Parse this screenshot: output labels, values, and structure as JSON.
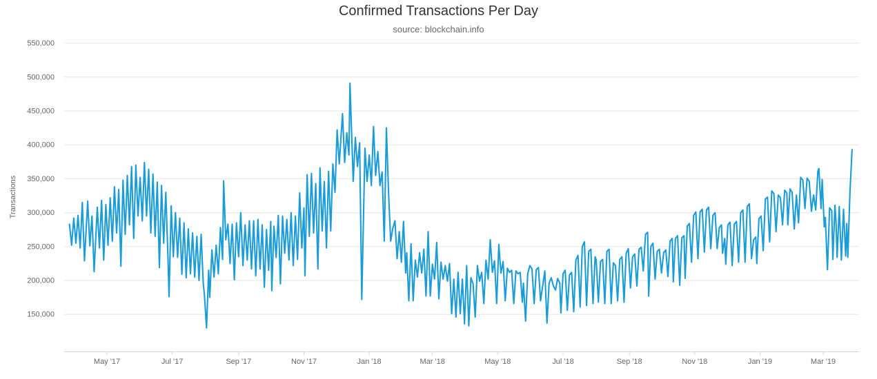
{
  "header": {
    "title": "Confirmed Transactions Per Day",
    "subtitle": "source: blockchain.info"
  },
  "chart_data": {
    "type": "line",
    "title": "Confirmed Transactions Per Day",
    "subtitle": "source: blockchain.info",
    "ylabel": "Transactions",
    "xlabel": "",
    "legend": "none",
    "grid": "horizontal",
    "line_color": "#1a9cd8",
    "grid_color": "#e6e6e6",
    "axis_color": "#ccd6eb",
    "label_color": "#666666",
    "ylim": [
      95000,
      550000
    ],
    "y_ticks": [
      {
        "label": "150,000",
        "value": 150000
      },
      {
        "label": "200,000",
        "value": 200000
      },
      {
        "label": "250,000",
        "value": 250000
      },
      {
        "label": "300,000",
        "value": 300000
      },
      {
        "label": "350,000",
        "value": 350000
      },
      {
        "label": "400,000",
        "value": 400000
      },
      {
        "label": "450,000",
        "value": 450000
      },
      {
        "label": "500,000",
        "value": 500000
      },
      {
        "label": "550,000",
        "value": 550000
      }
    ],
    "x_axis_unit": "days since 2017-04-01",
    "x_ticks": [
      {
        "label": "May '17",
        "day": 30
      },
      {
        "label": "Jul '17",
        "day": 91
      },
      {
        "label": "Sep '17",
        "day": 153
      },
      {
        "label": "Nov '17",
        "day": 214
      },
      {
        "label": "Jan '18",
        "day": 275
      },
      {
        "label": "Mar '18",
        "day": 334
      },
      {
        "label": "May '18",
        "day": 395
      },
      {
        "label": "Jul '18",
        "day": 456
      },
      {
        "label": "Sep '18",
        "day": 518
      },
      {
        "label": "Nov '18",
        "day": 579
      },
      {
        "label": "Jan '19",
        "day": 640
      },
      {
        "label": "Mar '19",
        "day": 699
      }
    ],
    "points": [
      [
        -5,
        283000
      ],
      [
        -3,
        252000
      ],
      [
        -1,
        292000
      ],
      [
        1,
        255000
      ],
      [
        3,
        296000
      ],
      [
        5,
        248000
      ],
      [
        7,
        315000
      ],
      [
        9,
        229000
      ],
      [
        12,
        317000
      ],
      [
        14,
        251000
      ],
      [
        16,
        295000
      ],
      [
        18,
        213000
      ],
      [
        21,
        308000
      ],
      [
        23,
        248000
      ],
      [
        25,
        318000
      ],
      [
        27,
        230000
      ],
      [
        29,
        312000
      ],
      [
        31,
        252000
      ],
      [
        33,
        322000
      ],
      [
        35,
        258000
      ],
      [
        37,
        338000
      ],
      [
        39,
        270000
      ],
      [
        41,
        334000
      ],
      [
        43,
        221000
      ],
      [
        45,
        348000
      ],
      [
        47,
        268000
      ],
      [
        49,
        355000
      ],
      [
        51,
        282000
      ],
      [
        53,
        368000
      ],
      [
        55,
        262000
      ],
      [
        57,
        370000
      ],
      [
        59,
        295000
      ],
      [
        61,
        352000
      ],
      [
        63,
        288000
      ],
      [
        65,
        374000
      ],
      [
        67,
        295000
      ],
      [
        69,
        364000
      ],
      [
        71,
        270000
      ],
      [
        73,
        357000
      ],
      [
        75,
        265000
      ],
      [
        77,
        345000
      ],
      [
        79,
        219000
      ],
      [
        81,
        340000
      ],
      [
        83,
        255000
      ],
      [
        85,
        330000
      ],
      [
        87,
        235000
      ],
      [
        88,
        176000
      ],
      [
        90,
        310000
      ],
      [
        92,
        235000
      ],
      [
        94,
        300000
      ],
      [
        96,
        234000
      ],
      [
        98,
        292000
      ],
      [
        100,
        209000
      ],
      [
        102,
        285000
      ],
      [
        104,
        204000
      ],
      [
        106,
        276000
      ],
      [
        108,
        210000
      ],
      [
        110,
        270000
      ],
      [
        112,
        205000
      ],
      [
        114,
        265000
      ],
      [
        116,
        200000
      ],
      [
        118,
        268000
      ],
      [
        120,
        195000
      ],
      [
        121,
        180000
      ],
      [
        123,
        130000
      ],
      [
        125,
        215000
      ],
      [
        126,
        175000
      ],
      [
        128,
        245000
      ],
      [
        130,
        205000
      ],
      [
        132,
        252000
      ],
      [
        134,
        210000
      ],
      [
        136,
        278000
      ],
      [
        138,
        231000
      ],
      [
        139,
        347000
      ],
      [
        141,
        260000
      ],
      [
        143,
        283000
      ],
      [
        145,
        225000
      ],
      [
        147,
        283000
      ],
      [
        149,
        201000
      ],
      [
        151,
        285000
      ],
      [
        153,
        235000
      ],
      [
        155,
        300000
      ],
      [
        157,
        222000
      ],
      [
        159,
        282000
      ],
      [
        161,
        230000
      ],
      [
        163,
        288000
      ],
      [
        165,
        217000
      ],
      [
        167,
        288000
      ],
      [
        169,
        207000
      ],
      [
        171,
        290000
      ],
      [
        173,
        217000
      ],
      [
        175,
        282000
      ],
      [
        177,
        190000
      ],
      [
        179,
        275000
      ],
      [
        181,
        215000
      ],
      [
        183,
        287000
      ],
      [
        184,
        185000
      ],
      [
        186,
        280000
      ],
      [
        188,
        234000
      ],
      [
        190,
        296000
      ],
      [
        192,
        195000
      ],
      [
        194,
        295000
      ],
      [
        196,
        240000
      ],
      [
        198,
        290000
      ],
      [
        200,
        230000
      ],
      [
        202,
        300000
      ],
      [
        204,
        222000
      ],
      [
        206,
        295000
      ],
      [
        208,
        231000
      ],
      [
        210,
        329000
      ],
      [
        212,
        248000
      ],
      [
        214,
        307000
      ],
      [
        215,
        207000
      ],
      [
        217,
        356000
      ],
      [
        219,
        265000
      ],
      [
        221,
        358000
      ],
      [
        223,
        270000
      ],
      [
        225,
        343000
      ],
      [
        227,
        217000
      ],
      [
        229,
        366000
      ],
      [
        231,
        273000
      ],
      [
        233,
        346000
      ],
      [
        235,
        248000
      ],
      [
        237,
        361000
      ],
      [
        239,
        273000
      ],
      [
        241,
        372000
      ],
      [
        243,
        330000
      ],
      [
        245,
        422000
      ],
      [
        247,
        372000
      ],
      [
        250,
        446000
      ],
      [
        252,
        374000
      ],
      [
        254,
        418000
      ],
      [
        256,
        385000
      ],
      [
        257,
        491000
      ],
      [
        260,
        346000
      ],
      [
        262,
        411000
      ],
      [
        264,
        368000
      ],
      [
        266,
        403000
      ],
      [
        268,
        172000
      ],
      [
        271,
        395000
      ],
      [
        273,
        346000
      ],
      [
        275,
        385000
      ],
      [
        277,
        340000
      ],
      [
        279,
        427000
      ],
      [
        281,
        355000
      ],
      [
        283,
        390000
      ],
      [
        285,
        340000
      ],
      [
        287,
        360000
      ],
      [
        289,
        258000
      ],
      [
        291,
        425000
      ],
      [
        293,
        330000
      ],
      [
        295,
        258000
      ],
      [
        297,
        277000
      ],
      [
        299,
        288000
      ],
      [
        301,
        232000
      ],
      [
        303,
        272000
      ],
      [
        305,
        227000
      ],
      [
        307,
        287000
      ],
      [
        309,
        211000
      ],
      [
        310,
        241000
      ],
      [
        312,
        170000
      ],
      [
        314,
        254000
      ],
      [
        316,
        170000
      ],
      [
        318,
        230000
      ],
      [
        320,
        205000
      ],
      [
        322,
        241000
      ],
      [
        324,
        211000
      ],
      [
        326,
        246000
      ],
      [
        328,
        177000
      ],
      [
        330,
        272000
      ],
      [
        332,
        177000
      ],
      [
        334,
        224000
      ],
      [
        336,
        202000
      ],
      [
        338,
        256000
      ],
      [
        340,
        173000
      ],
      [
        342,
        227000
      ],
      [
        344,
        202000
      ],
      [
        346,
        222000
      ],
      [
        348,
        199000
      ],
      [
        350,
        225000
      ],
      [
        352,
        151000
      ],
      [
        354,
        202000
      ],
      [
        356,
        146000
      ],
      [
        358,
        212000
      ],
      [
        360,
        151000
      ],
      [
        362,
        202000
      ],
      [
        364,
        136000
      ],
      [
        366,
        222000
      ],
      [
        368,
        133000
      ],
      [
        370,
        204000
      ],
      [
        372,
        195000
      ],
      [
        374,
        146000
      ],
      [
        376,
        222000
      ],
      [
        378,
        199000
      ],
      [
        380,
        212000
      ],
      [
        382,
        166000
      ],
      [
        384,
        230000
      ],
      [
        386,
        202000
      ],
      [
        388,
        260000
      ],
      [
        390,
        212000
      ],
      [
        392,
        229000
      ],
      [
        394,
        166000
      ],
      [
        396,
        253000
      ],
      [
        398,
        211000
      ],
      [
        400,
        228000
      ],
      [
        402,
        170000
      ],
      [
        404,
        218000
      ],
      [
        406,
        212000
      ],
      [
        408,
        215000
      ],
      [
        410,
        166000
      ],
      [
        412,
        214000
      ],
      [
        414,
        210000
      ],
      [
        416,
        212000
      ],
      [
        418,
        168000
      ],
      [
        419,
        196000
      ],
      [
        421,
        140000
      ],
      [
        423,
        210000
      ],
      [
        425,
        222000
      ],
      [
        427,
        217000
      ],
      [
        429,
        166000
      ],
      [
        431,
        216000
      ],
      [
        433,
        219000
      ],
      [
        435,
        170000
      ],
      [
        437,
        192000
      ],
      [
        439,
        214000
      ],
      [
        441,
        137000
      ],
      [
        443,
        196000
      ],
      [
        445,
        204000
      ],
      [
        447,
        192000
      ],
      [
        449,
        186000
      ],
      [
        451,
        203000
      ],
      [
        453,
        196000
      ],
      [
        454,
        152000
      ],
      [
        456,
        210000
      ],
      [
        458,
        215000
      ],
      [
        460,
        156000
      ],
      [
        462,
        208000
      ],
      [
        464,
        212000
      ],
      [
        466,
        154000
      ],
      [
        468,
        230000
      ],
      [
        470,
        237000
      ],
      [
        472,
        161000
      ],
      [
        474,
        250000
      ],
      [
        476,
        257000
      ],
      [
        478,
        163000
      ],
      [
        480,
        243000
      ],
      [
        482,
        246000
      ],
      [
        484,
        166000
      ],
      [
        486,
        235000
      ],
      [
        487,
        230000
      ],
      [
        489,
        168000
      ],
      [
        491,
        228000
      ],
      [
        493,
        231000
      ],
      [
        495,
        166000
      ],
      [
        497,
        243000
      ],
      [
        499,
        246000
      ],
      [
        501,
        166000
      ],
      [
        503,
        226000
      ],
      [
        505,
        222000
      ],
      [
        507,
        170000
      ],
      [
        509,
        231000
      ],
      [
        511,
        235000
      ],
      [
        513,
        168000
      ],
      [
        515,
        240000
      ],
      [
        517,
        247000
      ],
      [
        519,
        189000
      ],
      [
        521,
        235000
      ],
      [
        523,
        239000
      ],
      [
        525,
        192000
      ],
      [
        527,
        246000
      ],
      [
        529,
        249000
      ],
      [
        531,
        214000
      ],
      [
        533,
        268000
      ],
      [
        535,
        271000
      ],
      [
        536,
        177000
      ],
      [
        538,
        250000
      ],
      [
        540,
        255000
      ],
      [
        542,
        202000
      ],
      [
        544,
        243000
      ],
      [
        546,
        246000
      ],
      [
        548,
        211000
      ],
      [
        550,
        241000
      ],
      [
        552,
        245000
      ],
      [
        554,
        206000
      ],
      [
        556,
        258000
      ],
      [
        558,
        262000
      ],
      [
        559,
        198000
      ],
      [
        561,
        262000
      ],
      [
        563,
        266000
      ],
      [
        565,
        193000
      ],
      [
        567,
        263000
      ],
      [
        569,
        266000
      ],
      [
        570,
        203000
      ],
      [
        572,
        280000
      ],
      [
        574,
        284000
      ],
      [
        576,
        227000
      ],
      [
        578,
        296000
      ],
      [
        580,
        301000
      ],
      [
        582,
        232000
      ],
      [
        584,
        301000
      ],
      [
        586,
        305000
      ],
      [
        588,
        242000
      ],
      [
        590,
        304000
      ],
      [
        592,
        308000
      ],
      [
        594,
        247000
      ],
      [
        596,
        296000
      ],
      [
        598,
        300000
      ],
      [
        600,
        247000
      ],
      [
        602,
        278000
      ],
      [
        604,
        282000
      ],
      [
        605,
        240000
      ],
      [
        607,
        262000
      ],
      [
        608,
        224000
      ],
      [
        610,
        282000
      ],
      [
        612,
        286000
      ],
      [
        614,
        222000
      ],
      [
        616,
        283000
      ],
      [
        618,
        287000
      ],
      [
        620,
        227000
      ],
      [
        622,
        300000
      ],
      [
        624,
        304000
      ],
      [
        626,
        227000
      ],
      [
        628,
        309000
      ],
      [
        630,
        313000
      ],
      [
        632,
        232000
      ],
      [
        634,
        260000
      ],
      [
        636,
        264000
      ],
      [
        637,
        225000
      ],
      [
        639,
        291000
      ],
      [
        641,
        295000
      ],
      [
        643,
        244000
      ],
      [
        645,
        320000
      ],
      [
        647,
        323000
      ],
      [
        649,
        257000
      ],
      [
        651,
        332000
      ],
      [
        653,
        328000
      ],
      [
        655,
        272000
      ],
      [
        657,
        326000
      ],
      [
        659,
        322000
      ],
      [
        661,
        282000
      ],
      [
        663,
        333000
      ],
      [
        665,
        329000
      ],
      [
        666,
        282000
      ],
      [
        668,
        335000
      ],
      [
        670,
        330000
      ],
      [
        672,
        276000
      ],
      [
        674,
        326000
      ],
      [
        676,
        285000
      ],
      [
        678,
        352000
      ],
      [
        680,
        348000
      ],
      [
        682,
        306000
      ],
      [
        684,
        351000
      ],
      [
        686,
        346000
      ],
      [
        688,
        302000
      ],
      [
        690,
        326000
      ],
      [
        692,
        304000
      ],
      [
        694,
        361000
      ],
      [
        695,
        365000
      ],
      [
        697,
        306000
      ],
      [
        698,
        349000
      ],
      [
        700,
        279000
      ],
      [
        701,
        293000
      ],
      [
        703,
        216000
      ],
      [
        705,
        307000
      ],
      [
        707,
        303000
      ],
      [
        708,
        231000
      ],
      [
        710,
        311000
      ],
      [
        711,
        286000
      ],
      [
        712,
        234000
      ],
      [
        714,
        309000
      ],
      [
        716,
        230000
      ],
      [
        718,
        305000
      ],
      [
        720,
        236000
      ],
      [
        721,
        284000
      ],
      [
        722,
        234000
      ],
      [
        724,
        330000
      ],
      [
        726,
        393000
      ]
    ]
  }
}
